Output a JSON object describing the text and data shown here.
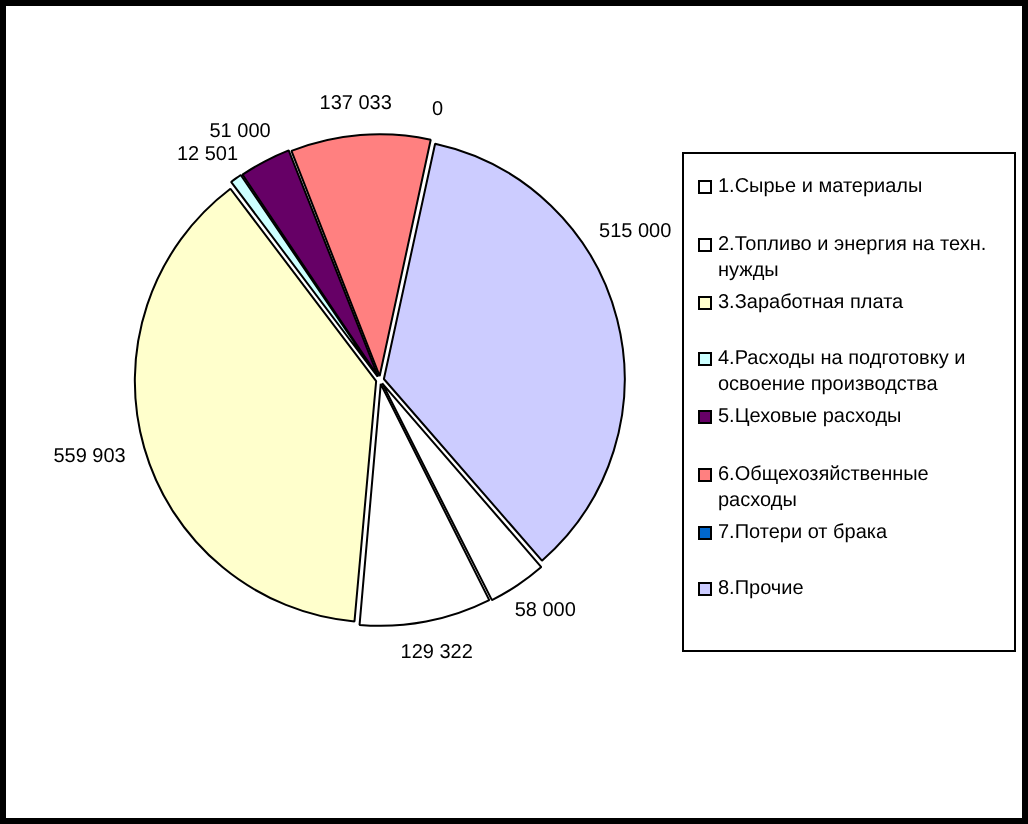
{
  "chart_data": {
    "type": "pie",
    "categories": [
      "1.Сырье и материалы",
      "2.Топливо и энергия на техн. нужды",
      "3.Заработная плата",
      "4.Расходы на подготовку и освоение производства",
      "5.Цеховые расходы",
      "6.Общехозяйственные расходы",
      "7.Потери от брака",
      "8.Прочие"
    ],
    "values": [
      58000,
      129322,
      559903,
      12501,
      51000,
      137033,
      0,
      515000
    ],
    "colors": [
      "#ffffff",
      "#ffffff",
      "#ffffcc",
      "#ccffff",
      "#660066",
      "#ff8080",
      "#0066cc",
      "#ccccff"
    ],
    "value_labels": [
      "58 000",
      "129 322",
      "559 903",
      "12 501",
      "51 000",
      "137 033",
      "0",
      "515 000"
    ],
    "legend": "right"
  }
}
